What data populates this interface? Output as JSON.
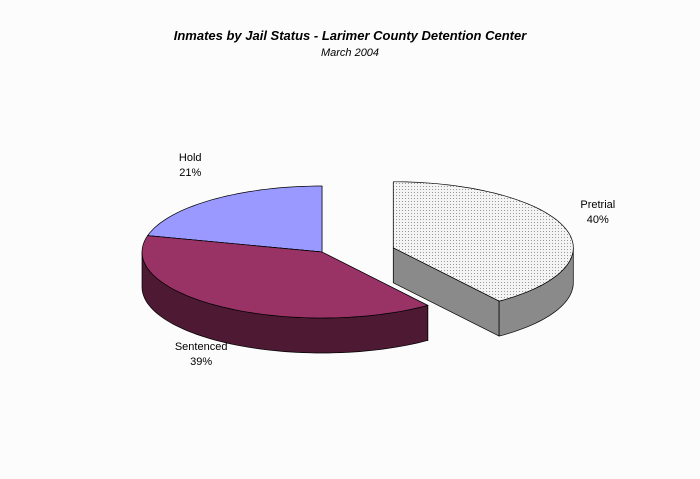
{
  "chart_data": {
    "type": "pie3d",
    "title": "Inmates by Jail Status - Larimer County Detention Center",
    "subtitle": "March 2004",
    "categories": [
      "Pretrial",
      "Sentenced",
      "Hold"
    ],
    "values": [
      40,
      39,
      21
    ],
    "value_labels": [
      "40%",
      "39%",
      "21%"
    ],
    "colors": [
      "#e6e6e6",
      "#993366",
      "#9999ff"
    ],
    "side_colors": [
      "#8a8a8a",
      "#4d1933",
      "#4d4d80"
    ],
    "exploded": [
      true,
      false,
      false
    ]
  }
}
